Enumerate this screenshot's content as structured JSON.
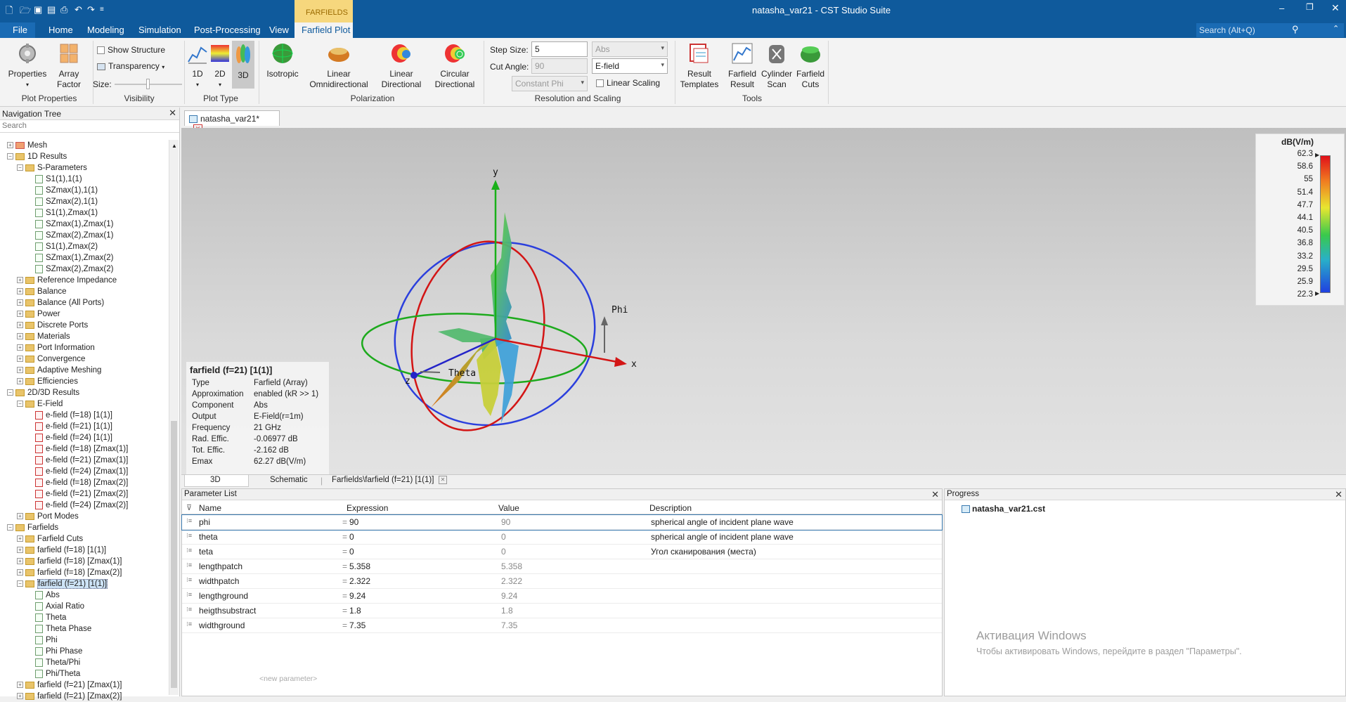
{
  "window": {
    "title": "natasha_var21 - CST Studio Suite",
    "context_tab_group": "FARFIELDS",
    "search_placeholder": "Search (Alt+Q)"
  },
  "ribbon_tabs": [
    "File",
    "Home",
    "Modeling",
    "Simulation",
    "Post-Processing",
    "View",
    "Farfield Plot"
  ],
  "ribbon": {
    "plot_properties": {
      "properties": "Properties",
      "array": "Array",
      "factor": "Factor",
      "group": "Plot Properties"
    },
    "visibility": {
      "show_structure": "Show Structure",
      "transparency": "Transparency",
      "size": "Size:",
      "group": "Visibility"
    },
    "plot_type": {
      "b1d": "1D",
      "b2d": "2D",
      "b3d": "3D",
      "group": "Plot Type"
    },
    "polarization": {
      "isotropic": "Isotropic",
      "lin_omni_1": "Linear",
      "lin_omni_2": "Omnidirectional",
      "lin_dir_1": "Linear",
      "lin_dir_2": "Directional",
      "circ_1": "Circular",
      "circ_2": "Directional",
      "group": "Polarization"
    },
    "resolution": {
      "step_label": "Step Size:",
      "step_value": "5",
      "cut_label": "Cut Angle:",
      "cut_value": "90",
      "abs_value": "Abs",
      "efield_value": "E-field",
      "const_phi": "Constant Phi",
      "linear_scaling": "Linear Scaling",
      "group": "Resolution and Scaling"
    },
    "tools": {
      "result_1": "Result",
      "result_2": "Templates",
      "farfield_1": "Farfield",
      "farfield_2": "Result",
      "cylinder_1": "Cylinder",
      "cylinder_2": "Scan",
      "cuts_1": "Farfield",
      "cuts_2": "Cuts",
      "group": "Tools"
    }
  },
  "nav": {
    "title": "Navigation Tree",
    "search": "Search",
    "rows": [
      {
        "label": "Mesh",
        "type": "folder-red",
        "level": 0,
        "exp": "+"
      },
      {
        "label": "1D Results",
        "type": "folder",
        "level": 0,
        "exp": "−"
      },
      {
        "label": "S-Parameters",
        "type": "folder",
        "level": 1,
        "exp": "−"
      },
      {
        "label": "S1(1),1(1)",
        "type": "curve",
        "level": 2
      },
      {
        "label": "SZmax(1),1(1)",
        "type": "curve",
        "level": 2
      },
      {
        "label": "SZmax(2),1(1)",
        "type": "curve",
        "level": 2
      },
      {
        "label": "S1(1),Zmax(1)",
        "type": "curve",
        "level": 2
      },
      {
        "label": "SZmax(1),Zmax(1)",
        "type": "curve",
        "level": 2
      },
      {
        "label": "SZmax(2),Zmax(1)",
        "type": "curve",
        "level": 2
      },
      {
        "label": "S1(1),Zmax(2)",
        "type": "curve",
        "level": 2
      },
      {
        "label": "SZmax(1),Zmax(2)",
        "type": "curve",
        "level": 2
      },
      {
        "label": "SZmax(2),Zmax(2)",
        "type": "curve",
        "level": 2
      },
      {
        "label": "Reference Impedance",
        "type": "folder",
        "level": 1,
        "exp": "+"
      },
      {
        "label": "Balance",
        "type": "folder",
        "level": 1,
        "exp": "+"
      },
      {
        "label": "Balance (All Ports)",
        "type": "folder",
        "level": 1,
        "exp": "+"
      },
      {
        "label": "Power",
        "type": "folder",
        "level": 1,
        "exp": "+"
      },
      {
        "label": "Discrete Ports",
        "type": "folder",
        "level": 1,
        "exp": "+"
      },
      {
        "label": "Materials",
        "type": "folder",
        "level": 1,
        "exp": "+"
      },
      {
        "label": "Port Information",
        "type": "folder",
        "level": 1,
        "exp": "+"
      },
      {
        "label": "Convergence",
        "type": "folder",
        "level": 1,
        "exp": "+"
      },
      {
        "label": "Adaptive Meshing",
        "type": "folder",
        "level": 1,
        "exp": "+"
      },
      {
        "label": "Efficiencies",
        "type": "folder",
        "level": 1,
        "exp": "+"
      },
      {
        "label": "2D/3D Results",
        "type": "folder",
        "level": 0,
        "exp": "−"
      },
      {
        "label": "E-Field",
        "type": "folder",
        "level": 1,
        "exp": "−"
      },
      {
        "label": "e-field (f=18) [1(1)]",
        "type": "efield",
        "level": 2
      },
      {
        "label": "e-field (f=21) [1(1)]",
        "type": "efield",
        "level": 2
      },
      {
        "label": "e-field (f=24) [1(1)]",
        "type": "efield",
        "level": 2
      },
      {
        "label": "e-field (f=18) [Zmax(1)]",
        "type": "efield",
        "level": 2
      },
      {
        "label": "e-field (f=21) [Zmax(1)]",
        "type": "efield",
        "level": 2
      },
      {
        "label": "e-field (f=24) [Zmax(1)]",
        "type": "efield",
        "level": 2
      },
      {
        "label": "e-field (f=18) [Zmax(2)]",
        "type": "efield",
        "level": 2
      },
      {
        "label": "e-field (f=21) [Zmax(2)]",
        "type": "efield",
        "level": 2
      },
      {
        "label": "e-field (f=24) [Zmax(2)]",
        "type": "efield",
        "level": 2
      },
      {
        "label": "Port Modes",
        "type": "folder",
        "level": 1,
        "exp": "+"
      },
      {
        "label": "Farfields",
        "type": "folder",
        "level": 0,
        "exp": "−"
      },
      {
        "label": "Farfield Cuts",
        "type": "folder",
        "level": 1,
        "exp": "+"
      },
      {
        "label": "farfield (f=18) [1(1)]",
        "type": "folder",
        "level": 1,
        "exp": "+"
      },
      {
        "label": "farfield (f=18) [Zmax(1)]",
        "type": "folder",
        "level": 1,
        "exp": "+"
      },
      {
        "label": "farfield (f=18) [Zmax(2)]",
        "type": "folder",
        "level": 1,
        "exp": "+"
      },
      {
        "label": "farfield (f=21) [1(1)]",
        "type": "folder",
        "level": 1,
        "exp": "−",
        "selected": true
      },
      {
        "label": "Abs",
        "type": "curve",
        "level": 2
      },
      {
        "label": "Axial Ratio",
        "type": "curve",
        "level": 2
      },
      {
        "label": "Theta",
        "type": "curve",
        "level": 2
      },
      {
        "label": "Theta Phase",
        "type": "curve",
        "level": 2
      },
      {
        "label": "Phi",
        "type": "curve",
        "level": 2
      },
      {
        "label": "Phi Phase",
        "type": "curve",
        "level": 2
      },
      {
        "label": "Theta/Phi",
        "type": "curve",
        "level": 2
      },
      {
        "label": "Phi/Theta",
        "type": "curve",
        "level": 2
      },
      {
        "label": "farfield (f=21) [Zmax(1)]",
        "type": "folder",
        "level": 1,
        "exp": "+"
      },
      {
        "label": "farfield (f=21) [Zmax(2)]",
        "type": "folder",
        "level": 1,
        "exp": "+"
      }
    ]
  },
  "document": {
    "tab_label": "natasha_var21*",
    "axes": {
      "x": "x",
      "y": "y",
      "z": "z",
      "phi": "Phi",
      "theta": "Theta"
    },
    "legend": {
      "unit": "dB(V/m)",
      "ticks": [
        "62.3",
        "58.6",
        "55",
        "51.4",
        "47.7",
        "44.1",
        "40.5",
        "36.8",
        "33.2",
        "29.5",
        "25.9",
        "22.3"
      ]
    },
    "info": {
      "title": "farfield (f=21) [1(1)]",
      "rows": [
        [
          "Type",
          "Farfield (Array)"
        ],
        [
          "Approximation",
          "enabled (kR >> 1)"
        ],
        [
          "Component",
          "Abs"
        ],
        [
          "Output",
          "E-Field(r=1m)"
        ],
        [
          "Frequency",
          "21 GHz"
        ],
        [
          "Rad. Effic.",
          "-0.06977 dB"
        ],
        [
          "Tot. Effic.",
          "-2.162 dB"
        ],
        [
          "Emax",
          "62.27 dB(V/m)"
        ]
      ]
    },
    "view_tabs": [
      "3D",
      "Schematic",
      "Farfields\\farfield (f=21) [1(1)]"
    ]
  },
  "params": {
    "title": "Parameter List",
    "columns": [
      "Name",
      "Expression",
      "Value",
      "Description"
    ],
    "rows": [
      [
        "phi",
        "90",
        "90",
        "spherical angle of incident plane wave"
      ],
      [
        "theta",
        "0",
        "0",
        "spherical angle of incident plane wave"
      ],
      [
        "teta",
        "0",
        "0",
        "Угол сканирования (места)"
      ],
      [
        "lengthpatch",
        "5.358",
        "5.358",
        ""
      ],
      [
        "widthpatch",
        "2.322",
        "2.322",
        ""
      ],
      [
        "lengthground",
        "9.24",
        "9.24",
        ""
      ],
      [
        "heigthsubstract",
        "1.8",
        "1.8",
        ""
      ],
      [
        "widthground",
        "7.35",
        "7.35",
        ""
      ]
    ],
    "new_param": "<new parameter>"
  },
  "progress": {
    "title": "Progress",
    "item": "natasha_var21.cst"
  },
  "watermark": {
    "line1": "Активация Windows",
    "line2": "Чтобы активировать Windows, перейдите в раздел \"Параметры\"."
  },
  "colors": {
    "titlebar": "#0f5a9c",
    "context_tab": "#f6d77d",
    "x_axis": "#d11",
    "y_axis": "#1a1",
    "z_axis": "#22c"
  }
}
